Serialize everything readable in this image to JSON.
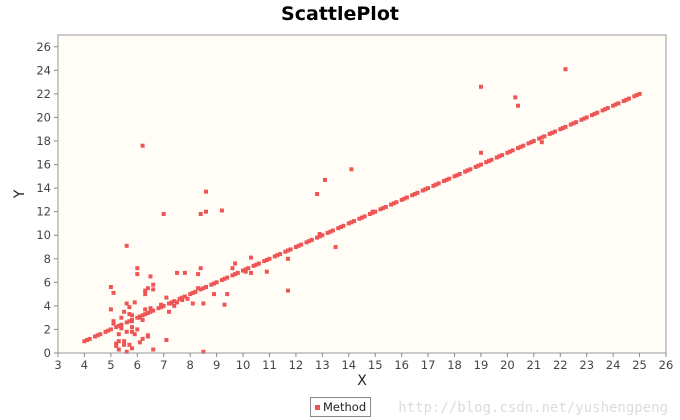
{
  "chart_data": {
    "type": "scatter",
    "title": "ScattlePlot",
    "xlabel": "X",
    "ylabel": "Y",
    "xlim": [
      3,
      26
    ],
    "ylim": [
      0,
      27
    ],
    "xticks": [
      3,
      4,
      5,
      6,
      7,
      8,
      9,
      10,
      11,
      12,
      13,
      14,
      15,
      16,
      17,
      18,
      19,
      20,
      21,
      22,
      23,
      24,
      25,
      26
    ],
    "yticks": [
      0,
      2,
      4,
      6,
      8,
      10,
      12,
      14,
      16,
      18,
      20,
      22,
      24,
      26
    ],
    "grid": false,
    "legend_position": "bottom-center",
    "background_color": "#fffdf6",
    "series": [
      {
        "name": "Method",
        "color": "#ee5555",
        "points": [
          [
            4.0,
            1.0
          ],
          [
            4.2,
            1.2
          ],
          [
            4.4,
            1.4
          ],
          [
            4.6,
            1.6
          ],
          [
            4.8,
            1.8
          ],
          [
            5.0,
            2.0
          ],
          [
            5.2,
            2.2
          ],
          [
            5.4,
            2.4
          ],
          [
            5.6,
            2.6
          ],
          [
            5.8,
            2.8
          ],
          [
            6.0,
            3.0
          ],
          [
            6.2,
            3.2
          ],
          [
            6.4,
            3.4
          ],
          [
            6.6,
            3.6
          ],
          [
            6.8,
            3.8
          ],
          [
            7.0,
            4.0
          ],
          [
            7.2,
            4.2
          ],
          [
            7.4,
            4.4
          ],
          [
            7.6,
            4.6
          ],
          [
            7.8,
            4.8
          ],
          [
            8.0,
            5.0
          ],
          [
            8.2,
            5.2
          ],
          [
            8.4,
            5.4
          ],
          [
            8.6,
            5.6
          ],
          [
            8.8,
            5.8
          ],
          [
            9.0,
            6.0
          ],
          [
            9.2,
            6.2
          ],
          [
            9.4,
            6.4
          ],
          [
            9.6,
            6.6
          ],
          [
            9.8,
            6.8
          ],
          [
            10.0,
            7.0
          ],
          [
            10.2,
            7.2
          ],
          [
            10.4,
            7.4
          ],
          [
            10.6,
            7.6
          ],
          [
            10.8,
            7.8
          ],
          [
            11.0,
            8.0
          ],
          [
            11.2,
            8.2
          ],
          [
            11.4,
            8.4
          ],
          [
            11.6,
            8.6
          ],
          [
            11.8,
            8.8
          ],
          [
            12.0,
            9.0
          ],
          [
            12.2,
            9.2
          ],
          [
            12.4,
            9.4
          ],
          [
            12.6,
            9.6
          ],
          [
            12.8,
            9.8
          ],
          [
            13.0,
            10.0
          ],
          [
            13.2,
            10.2
          ],
          [
            13.4,
            10.4
          ],
          [
            13.6,
            10.6
          ],
          [
            13.8,
            10.8
          ],
          [
            14.0,
            11.0
          ],
          [
            14.2,
            11.2
          ],
          [
            14.4,
            11.4
          ],
          [
            14.6,
            11.6
          ],
          [
            14.8,
            11.8
          ],
          [
            15.0,
            12.0
          ],
          [
            15.2,
            12.2
          ],
          [
            15.4,
            12.4
          ],
          [
            15.6,
            12.6
          ],
          [
            15.8,
            12.8
          ],
          [
            16.0,
            13.0
          ],
          [
            16.2,
            13.2
          ],
          [
            16.4,
            13.4
          ],
          [
            16.6,
            13.6
          ],
          [
            16.8,
            13.8
          ],
          [
            17.0,
            14.0
          ],
          [
            17.2,
            14.2
          ],
          [
            17.4,
            14.4
          ],
          [
            17.6,
            14.6
          ],
          [
            17.8,
            14.8
          ],
          [
            18.0,
            15.0
          ],
          [
            18.2,
            15.2
          ],
          [
            18.4,
            15.4
          ],
          [
            18.6,
            15.6
          ],
          [
            18.8,
            15.8
          ],
          [
            19.0,
            16.0
          ],
          [
            19.2,
            16.2
          ],
          [
            19.4,
            16.4
          ],
          [
            19.6,
            16.6
          ],
          [
            19.8,
            16.8
          ],
          [
            20.0,
            17.0
          ],
          [
            20.2,
            17.2
          ],
          [
            20.4,
            17.4
          ],
          [
            20.6,
            17.6
          ],
          [
            20.8,
            17.8
          ],
          [
            21.0,
            18.0
          ],
          [
            21.2,
            18.2
          ],
          [
            21.4,
            18.4
          ],
          [
            21.6,
            18.6
          ],
          [
            21.8,
            18.8
          ],
          [
            22.0,
            19.0
          ],
          [
            22.2,
            19.2
          ],
          [
            22.4,
            19.4
          ],
          [
            22.6,
            19.6
          ],
          [
            22.8,
            19.8
          ],
          [
            23.0,
            20.0
          ],
          [
            23.2,
            20.2
          ],
          [
            23.4,
            20.4
          ],
          [
            23.6,
            20.6
          ],
          [
            23.8,
            20.8
          ],
          [
            24.0,
            21.0
          ],
          [
            24.2,
            21.2
          ],
          [
            24.4,
            21.4
          ],
          [
            24.6,
            21.6
          ],
          [
            24.8,
            21.8
          ],
          [
            25.0,
            22.0
          ],
          [
            4.1,
            1.1
          ],
          [
            4.5,
            1.5
          ],
          [
            4.9,
            1.9
          ],
          [
            5.3,
            2.3
          ],
          [
            5.7,
            2.7
          ],
          [
            6.1,
            3.1
          ],
          [
            6.5,
            3.5
          ],
          [
            6.9,
            3.9
          ],
          [
            7.3,
            4.3
          ],
          [
            7.7,
            4.7
          ],
          [
            8.1,
            5.1
          ],
          [
            8.5,
            5.5
          ],
          [
            8.9,
            5.9
          ],
          [
            9.3,
            6.3
          ],
          [
            9.7,
            6.7
          ],
          [
            10.1,
            7.1
          ],
          [
            10.5,
            7.5
          ],
          [
            10.9,
            7.9
          ],
          [
            11.3,
            8.3
          ],
          [
            11.7,
            8.7
          ],
          [
            12.1,
            9.1
          ],
          [
            12.5,
            9.5
          ],
          [
            12.9,
            9.9
          ],
          [
            13.3,
            10.3
          ],
          [
            13.7,
            10.7
          ],
          [
            14.1,
            11.1
          ],
          [
            14.5,
            11.5
          ],
          [
            14.9,
            11.9
          ],
          [
            15.3,
            12.3
          ],
          [
            15.7,
            12.7
          ],
          [
            16.1,
            13.1
          ],
          [
            16.5,
            13.5
          ],
          [
            16.9,
            13.9
          ],
          [
            17.3,
            14.3
          ],
          [
            17.7,
            14.7
          ],
          [
            18.1,
            15.1
          ],
          [
            18.5,
            15.5
          ],
          [
            18.9,
            15.9
          ],
          [
            19.3,
            16.3
          ],
          [
            19.7,
            16.7
          ],
          [
            20.1,
            17.1
          ],
          [
            20.5,
            17.5
          ],
          [
            20.9,
            17.9
          ],
          [
            21.3,
            18.3
          ],
          [
            21.7,
            18.7
          ],
          [
            22.1,
            19.1
          ],
          [
            22.5,
            19.5
          ],
          [
            22.9,
            19.9
          ],
          [
            23.3,
            20.3
          ],
          [
            23.7,
            20.7
          ],
          [
            24.1,
            21.1
          ],
          [
            24.5,
            21.5
          ],
          [
            24.9,
            21.9
          ],
          [
            5.0,
            5.6
          ],
          [
            5.0,
            3.7
          ],
          [
            5.1,
            5.1
          ],
          [
            5.1,
            2.7
          ],
          [
            5.1,
            2.5
          ],
          [
            5.2,
            0.6
          ],
          [
            5.2,
            0.8
          ],
          [
            5.3,
            0.3
          ],
          [
            5.3,
            1.0
          ],
          [
            5.3,
            1.6
          ],
          [
            5.4,
            2.1
          ],
          [
            5.4,
            3.0
          ],
          [
            5.5,
            1.0
          ],
          [
            5.5,
            0.7
          ],
          [
            5.5,
            3.5
          ],
          [
            5.6,
            4.2
          ],
          [
            5.6,
            9.1
          ],
          [
            5.6,
            0.1
          ],
          [
            5.6,
            1.8
          ],
          [
            5.7,
            3.3
          ],
          [
            5.7,
            3.9
          ],
          [
            5.7,
            0.7
          ],
          [
            5.8,
            0.4
          ],
          [
            5.8,
            2.2
          ],
          [
            5.8,
            3.2
          ],
          [
            5.8,
            2.7
          ],
          [
            5.8,
            1.8
          ],
          [
            5.9,
            4.3
          ],
          [
            5.9,
            1.6
          ],
          [
            6.0,
            6.7
          ],
          [
            6.0,
            7.2
          ],
          [
            6.0,
            2.0
          ],
          [
            6.1,
            0.9
          ],
          [
            6.1,
            3.0
          ],
          [
            6.2,
            17.6
          ],
          [
            6.2,
            1.2
          ],
          [
            6.2,
            2.8
          ],
          [
            6.3,
            3.3
          ],
          [
            6.3,
            3.7
          ],
          [
            6.3,
            5.0
          ],
          [
            6.3,
            5.3
          ],
          [
            6.4,
            5.5
          ],
          [
            6.4,
            1.5
          ],
          [
            6.4,
            1.4
          ],
          [
            6.5,
            6.5
          ],
          [
            6.5,
            3.8
          ],
          [
            6.6,
            5.8
          ],
          [
            6.6,
            5.4
          ],
          [
            6.6,
            0.3
          ],
          [
            6.9,
            4.1
          ],
          [
            7.0,
            11.8
          ],
          [
            7.1,
            1.1
          ],
          [
            7.1,
            4.7
          ],
          [
            7.2,
            3.5
          ],
          [
            7.3,
            4.2
          ],
          [
            7.4,
            4.0
          ],
          [
            7.5,
            4.3
          ],
          [
            7.5,
            6.8
          ],
          [
            7.7,
            4.5
          ],
          [
            7.8,
            6.8
          ],
          [
            7.9,
            4.6
          ],
          [
            8.1,
            4.2
          ],
          [
            8.3,
            5.5
          ],
          [
            8.3,
            6.7
          ],
          [
            8.4,
            7.2
          ],
          [
            8.4,
            11.8
          ],
          [
            8.5,
            0.1
          ],
          [
            8.5,
            4.2
          ],
          [
            8.6,
            12.0
          ],
          [
            8.6,
            13.7
          ],
          [
            8.9,
            5.0
          ],
          [
            9.2,
            12.1
          ],
          [
            9.3,
            4.1
          ],
          [
            9.4,
            5.0
          ],
          [
            9.6,
            7.2
          ],
          [
            9.7,
            7.6
          ],
          [
            10.1,
            6.9
          ],
          [
            10.3,
            6.8
          ],
          [
            10.3,
            8.1
          ],
          [
            10.9,
            6.9
          ],
          [
            11.7,
            8.0
          ],
          [
            11.7,
            5.3
          ],
          [
            12.8,
            13.5
          ],
          [
            12.9,
            10.1
          ],
          [
            13.1,
            14.7
          ],
          [
            13.5,
            9.0
          ],
          [
            14.1,
            15.6
          ],
          [
            14.9,
            12.0
          ],
          [
            19.0,
            22.6
          ],
          [
            19.0,
            17.0
          ],
          [
            20.3,
            21.7
          ],
          [
            20.4,
            21.0
          ],
          [
            21.3,
            17.9
          ],
          [
            22.2,
            24.1
          ]
        ]
      }
    ]
  },
  "watermark": "http://blog.csdn.net/yushengpeng"
}
